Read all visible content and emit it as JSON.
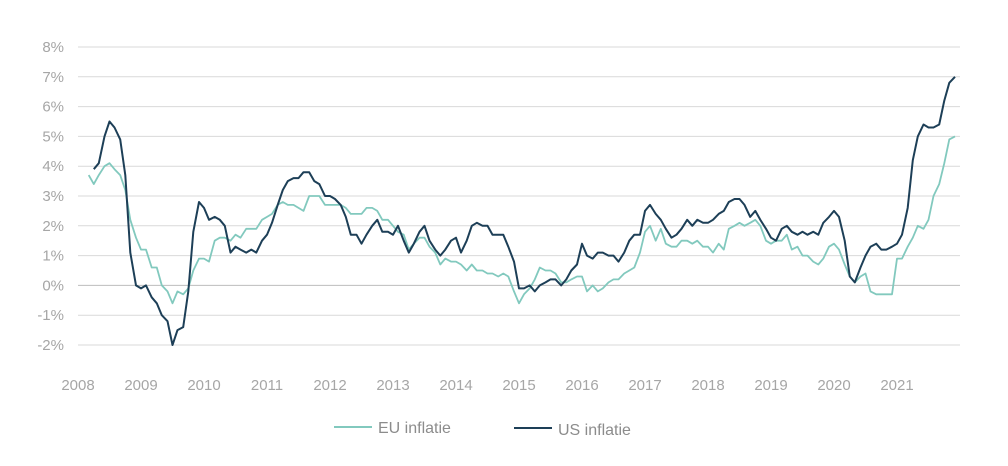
{
  "chart_data": {
    "type": "line",
    "title": "",
    "xlabel": "",
    "ylabel": "",
    "ylim": [
      -2,
      8
    ],
    "xlim": [
      2008,
      2022
    ],
    "grid": true,
    "legend_position": "bottom-center",
    "y_ticks": [
      "8%",
      "7%",
      "6%",
      "5%",
      "4%",
      "3%",
      "2%",
      "1%",
      "0%",
      "-1%",
      "-2%"
    ],
    "y_tick_values": [
      8,
      7,
      6,
      5,
      4,
      3,
      2,
      1,
      0,
      -1,
      -2
    ],
    "x_ticks": [
      "2008",
      "2009",
      "2010",
      "2011",
      "2012",
      "2013",
      "2014",
      "2015",
      "2016",
      "2017",
      "2018",
      "2019",
      "2020",
      "2021"
    ],
    "x_tick_values": [
      2008,
      2009,
      2010,
      2011,
      2012,
      2013,
      2014,
      2015,
      2016,
      2017,
      2018,
      2019,
      2020,
      2021
    ],
    "series": [
      {
        "name": "EU inflatie",
        "color": "#82c9be",
        "x": [
          2008.17,
          2008.25,
          2008.33,
          2008.42,
          2008.5,
          2008.58,
          2008.67,
          2008.75,
          2008.83,
          2008.92,
          2009.0,
          2009.08,
          2009.17,
          2009.25,
          2009.33,
          2009.42,
          2009.5,
          2009.58,
          2009.67,
          2009.75,
          2009.83,
          2009.92,
          2010.0,
          2010.08,
          2010.17,
          2010.25,
          2010.33,
          2010.42,
          2010.5,
          2010.58,
          2010.67,
          2010.75,
          2010.83,
          2010.92,
          2011.0,
          2011.08,
          2011.17,
          2011.25,
          2011.33,
          2011.42,
          2011.5,
          2011.58,
          2011.67,
          2011.75,
          2011.83,
          2011.92,
          2012.0,
          2012.08,
          2012.17,
          2012.25,
          2012.33,
          2012.42,
          2012.5,
          2012.58,
          2012.67,
          2012.75,
          2012.83,
          2012.92,
          2013.0,
          2013.08,
          2013.17,
          2013.25,
          2013.33,
          2013.42,
          2013.5,
          2013.58,
          2013.67,
          2013.75,
          2013.83,
          2013.92,
          2014.0,
          2014.08,
          2014.17,
          2014.25,
          2014.33,
          2014.42,
          2014.5,
          2014.58,
          2014.67,
          2014.75,
          2014.83,
          2014.92,
          2015.0,
          2015.08,
          2015.17,
          2015.25,
          2015.33,
          2015.42,
          2015.5,
          2015.58,
          2015.67,
          2015.75,
          2015.83,
          2015.92,
          2016.0,
          2016.08,
          2016.17,
          2016.25,
          2016.33,
          2016.42,
          2016.5,
          2016.58,
          2016.67,
          2016.75,
          2016.83,
          2016.92,
          2017.0,
          2017.08,
          2017.17,
          2017.25,
          2017.33,
          2017.42,
          2017.5,
          2017.58,
          2017.67,
          2017.75,
          2017.83,
          2017.92,
          2018.0,
          2018.08,
          2018.17,
          2018.25,
          2018.33,
          2018.42,
          2018.5,
          2018.58,
          2018.67,
          2018.75,
          2018.83,
          2018.92,
          2019.0,
          2019.08,
          2019.17,
          2019.25,
          2019.33,
          2019.42,
          2019.5,
          2019.58,
          2019.67,
          2019.75,
          2019.83,
          2019.92,
          2020.0,
          2020.08,
          2020.17,
          2020.25,
          2020.33,
          2020.42,
          2020.5,
          2020.58,
          2020.67,
          2020.75,
          2020.83,
          2020.92,
          2021.0,
          2021.08,
          2021.17,
          2021.25,
          2021.33,
          2021.42,
          2021.5,
          2021.58,
          2021.67,
          2021.75,
          2021.83,
          2021.92
        ],
        "values": [
          3.7,
          3.4,
          3.7,
          4.0,
          4.1,
          3.9,
          3.7,
          3.2,
          2.2,
          1.6,
          1.2,
          1.2,
          0.6,
          0.6,
          0.0,
          -0.2,
          -0.6,
          -0.2,
          -0.3,
          -0.1,
          0.5,
          0.9,
          0.9,
          0.8,
          1.5,
          1.6,
          1.6,
          1.5,
          1.7,
          1.6,
          1.9,
          1.9,
          1.9,
          2.2,
          2.3,
          2.4,
          2.7,
          2.8,
          2.7,
          2.7,
          2.6,
          2.5,
          3.0,
          3.0,
          3.0,
          2.7,
          2.7,
          2.7,
          2.7,
          2.6,
          2.4,
          2.4,
          2.4,
          2.6,
          2.6,
          2.5,
          2.2,
          2.2,
          2.0,
          1.8,
          1.7,
          1.2,
          1.4,
          1.6,
          1.6,
          1.3,
          1.1,
          0.7,
          0.9,
          0.8,
          0.8,
          0.7,
          0.5,
          0.7,
          0.5,
          0.5,
          0.4,
          0.4,
          0.3,
          0.4,
          0.3,
          -0.2,
          -0.6,
          -0.3,
          -0.1,
          0.2,
          0.6,
          0.5,
          0.5,
          0.4,
          0.1,
          0.1,
          0.2,
          0.3,
          0.3,
          -0.2,
          0.0,
          -0.2,
          -0.1,
          0.1,
          0.2,
          0.2,
          0.4,
          0.5,
          0.6,
          1.1,
          1.8,
          2.0,
          1.5,
          1.9,
          1.4,
          1.3,
          1.3,
          1.5,
          1.5,
          1.4,
          1.5,
          1.3,
          1.3,
          1.1,
          1.4,
          1.2,
          1.9,
          2.0,
          2.1,
          2.0,
          2.1,
          2.2,
          2.0,
          1.5,
          1.4,
          1.5,
          1.5,
          1.7,
          1.2,
          1.3,
          1.0,
          1.0,
          0.8,
          0.7,
          0.9,
          1.3,
          1.4,
          1.2,
          0.7,
          0.3,
          0.1,
          0.3,
          0.4,
          -0.2,
          -0.3,
          -0.3,
          -0.3,
          -0.3,
          0.9,
          0.9,
          1.3,
          1.6,
          2.0,
          1.9,
          2.2,
          3.0,
          3.4,
          4.1,
          4.9,
          5.0
        ],
        "values_note": ""
      },
      {
        "name": "US inflatie",
        "color": "#1d3f57",
        "x": [
          2008.25,
          2008.33,
          2008.42,
          2008.5,
          2008.58,
          2008.67,
          2008.75,
          2008.83,
          2008.92,
          2009.0,
          2009.08,
          2009.17,
          2009.25,
          2009.33,
          2009.42,
          2009.5,
          2009.58,
          2009.67,
          2009.75,
          2009.83,
          2009.92,
          2010.0,
          2010.08,
          2010.17,
          2010.25,
          2010.33,
          2010.42,
          2010.5,
          2010.58,
          2010.67,
          2010.75,
          2010.83,
          2010.92,
          2011.0,
          2011.08,
          2011.17,
          2011.25,
          2011.33,
          2011.42,
          2011.5,
          2011.58,
          2011.67,
          2011.75,
          2011.83,
          2011.92,
          2012.0,
          2012.08,
          2012.17,
          2012.25,
          2012.33,
          2012.42,
          2012.5,
          2012.58,
          2012.67,
          2012.75,
          2012.83,
          2012.92,
          2013.0,
          2013.08,
          2013.17,
          2013.25,
          2013.33,
          2013.42,
          2013.5,
          2013.58,
          2013.67,
          2013.75,
          2013.83,
          2013.92,
          2014.0,
          2014.08,
          2014.17,
          2014.25,
          2014.33,
          2014.42,
          2014.5,
          2014.58,
          2014.67,
          2014.75,
          2014.83,
          2014.92,
          2015.0,
          2015.08,
          2015.17,
          2015.25,
          2015.33,
          2015.42,
          2015.5,
          2015.58,
          2015.67,
          2015.75,
          2015.83,
          2015.92,
          2016.0,
          2016.08,
          2016.17,
          2016.25,
          2016.33,
          2016.42,
          2016.5,
          2016.58,
          2016.67,
          2016.75,
          2016.83,
          2016.92,
          2017.0,
          2017.08,
          2017.17,
          2017.25,
          2017.33,
          2017.42,
          2017.5,
          2017.58,
          2017.67,
          2017.75,
          2017.83,
          2017.92,
          2018.0,
          2018.08,
          2018.17,
          2018.25,
          2018.33,
          2018.42,
          2018.5,
          2018.58,
          2018.67,
          2018.75,
          2018.83,
          2018.92,
          2019.0,
          2019.08,
          2019.17,
          2019.25,
          2019.33,
          2019.42,
          2019.5,
          2019.58,
          2019.67,
          2019.75,
          2019.83,
          2019.92,
          2020.0,
          2020.08,
          2020.17,
          2020.25,
          2020.33,
          2020.42,
          2020.5,
          2020.58,
          2020.67,
          2020.75,
          2020.83,
          2020.92,
          2021.0,
          2021.08,
          2021.17,
          2021.25,
          2021.33,
          2021.42,
          2021.5,
          2021.58,
          2021.67,
          2021.75,
          2021.83,
          2021.92
        ],
        "values": [
          3.9,
          4.1,
          5.0,
          5.5,
          5.3,
          4.9,
          3.7,
          1.1,
          0.0,
          -0.1,
          0.0,
          -0.4,
          -0.6,
          -1.0,
          -1.2,
          -2.0,
          -1.5,
          -1.4,
          -0.2,
          1.8,
          2.8,
          2.6,
          2.2,
          2.3,
          2.2,
          2.0,
          1.1,
          1.3,
          1.2,
          1.1,
          1.2,
          1.1,
          1.5,
          1.7,
          2.1,
          2.7,
          3.2,
          3.5,
          3.6,
          3.6,
          3.8,
          3.8,
          3.5,
          3.4,
          3.0,
          3.0,
          2.9,
          2.7,
          2.3,
          1.7,
          1.7,
          1.4,
          1.7,
          2.0,
          2.2,
          1.8,
          1.8,
          1.7,
          2.0,
          1.5,
          1.1,
          1.4,
          1.8,
          2.0,
          1.5,
          1.2,
          1.0,
          1.2,
          1.5,
          1.6,
          1.1,
          1.5,
          2.0,
          2.1,
          2.0,
          2.0,
          1.7,
          1.7,
          1.7,
          1.3,
          0.8,
          -0.1,
          -0.1,
          0.0,
          -0.2,
          0.0,
          0.1,
          0.2,
          0.2,
          0.0,
          0.2,
          0.5,
          0.7,
          1.4,
          1.0,
          0.9,
          1.1,
          1.1,
          1.0,
          1.0,
          0.8,
          1.1,
          1.5,
          1.7,
          1.7,
          2.5,
          2.7,
          2.4,
          2.2,
          1.9,
          1.6,
          1.7,
          1.9,
          2.2,
          2.0,
          2.2,
          2.1,
          2.1,
          2.2,
          2.4,
          2.5,
          2.8,
          2.9,
          2.9,
          2.7,
          2.3,
          2.5,
          2.2,
          1.9,
          1.6,
          1.5,
          1.9,
          2.0,
          1.8,
          1.7,
          1.8,
          1.7,
          1.8,
          1.7,
          2.1,
          2.3,
          2.5,
          2.3,
          1.5,
          0.3,
          0.1,
          0.6,
          1.0,
          1.3,
          1.4,
          1.2,
          1.2,
          1.3,
          1.4,
          1.7,
          2.6,
          4.2,
          5.0,
          5.4,
          5.3,
          5.3,
          5.4,
          6.2,
          6.8,
          7.0
        ],
        "values_note": ""
      }
    ]
  }
}
